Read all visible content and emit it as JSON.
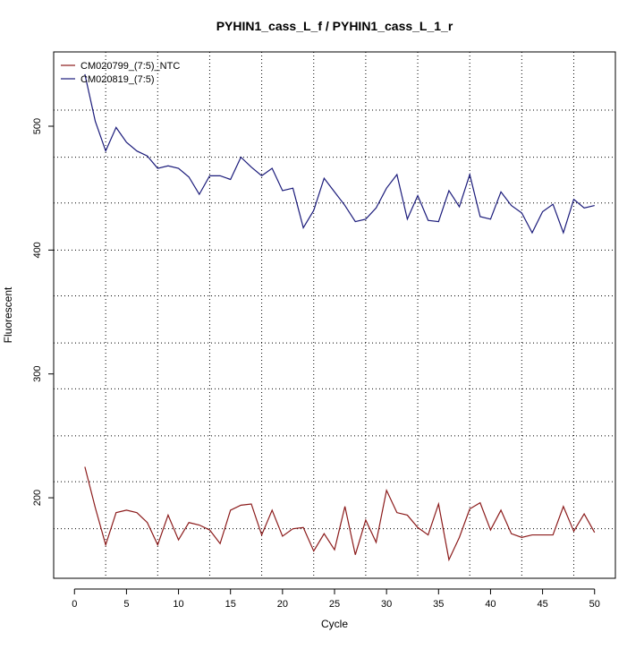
{
  "chart_data": {
    "type": "line",
    "title": "PYHIN1_cass_L_f / PYHIN1_cass_L_1_r",
    "xlabel": "Cycle",
    "ylabel": "Fluorescent",
    "xlim": [
      -2,
      52
    ],
    "ylim": [
      135,
      560
    ],
    "x_ticks": [
      0,
      5,
      10,
      15,
      20,
      25,
      30,
      35,
      40,
      45,
      50
    ],
    "y_ticks": [
      200,
      300,
      400,
      500
    ],
    "x_tick_labels": [
      "0",
      "5",
      "10",
      "15",
      "20",
      "25",
      "30",
      "35",
      "40",
      "45",
      "50"
    ],
    "y_tick_labels": [
      "200",
      "300",
      "400",
      "500"
    ],
    "v_grid": [
      3,
      8,
      13,
      18,
      23,
      28,
      33,
      38,
      43,
      48
    ],
    "h_grid": [
      175,
      213,
      250,
      288,
      325,
      363,
      400,
      438,
      475,
      513
    ],
    "grid": true,
    "legend_position": "top-left",
    "x": [
      1,
      2,
      3,
      4,
      5,
      6,
      7,
      8,
      9,
      10,
      11,
      12,
      13,
      14,
      15,
      16,
      17,
      18,
      19,
      20,
      21,
      22,
      23,
      24,
      25,
      26,
      27,
      28,
      29,
      30,
      31,
      32,
      33,
      34,
      35,
      36,
      37,
      38,
      39,
      40,
      41,
      42,
      43,
      44,
      45,
      46,
      47,
      48,
      49,
      50
    ],
    "series": [
      {
        "name": "CM020799_(7:5)_NTC",
        "color": "#8b1a1a",
        "values": [
          225,
          192,
          162,
          188,
          190,
          188,
          180,
          162,
          186,
          166,
          180,
          178,
          174,
          163,
          190,
          194,
          195,
          170,
          190,
          169,
          175,
          176,
          157,
          171,
          158,
          193,
          154,
          182,
          164,
          206,
          188,
          186,
          176,
          170,
          195,
          150,
          168,
          191,
          196,
          174,
          190,
          171,
          168,
          170,
          170,
          170,
          193,
          173,
          187,
          172
        ]
      },
      {
        "name": "CM020819_(7:5)",
        "color": "#1a1a7a",
        "values": [
          542,
          504,
          480,
          499,
          487,
          480,
          476,
          466,
          468,
          466,
          459,
          445,
          460,
          460,
          457,
          475,
          467,
          460,
          466,
          448,
          450,
          418,
          432,
          458,
          447,
          436,
          423,
          425,
          434,
          450,
          461,
          425,
          444,
          424,
          423,
          448,
          435,
          461,
          427,
          425,
          447,
          436,
          430,
          414,
          431,
          437,
          414,
          441,
          434,
          436
        ]
      }
    ]
  }
}
